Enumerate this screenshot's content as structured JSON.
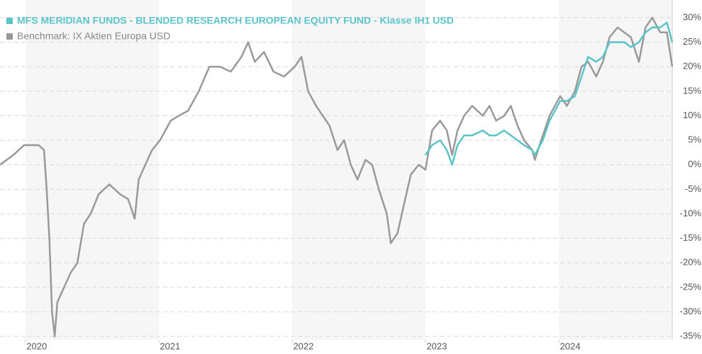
{
  "chart_data": {
    "type": "line",
    "series": [
      {
        "name": "MFS MERIDIAN FUNDS - BLENDED RESEARCH EUROPEAN EQUITY FUND - Klasse IH1 USD",
        "color": "#5bc4c9",
        "values": [
          null,
          null,
          null,
          null,
          null,
          null,
          null,
          null,
          null,
          null,
          null,
          null,
          null,
          null,
          null,
          null,
          null,
          null,
          null,
          null,
          null,
          null,
          null,
          null,
          null,
          null,
          null,
          null,
          null,
          null,
          null,
          null,
          null,
          null,
          null,
          null,
          null,
          null,
          null,
          null,
          null,
          null,
          null,
          null,
          null,
          null,
          null,
          null,
          null,
          null,
          null,
          null,
          null,
          null,
          null,
          null,
          2,
          4,
          5,
          3,
          0,
          4,
          6,
          6,
          7,
          6,
          6,
          7,
          6,
          5,
          4,
          3,
          2,
          5,
          9,
          13,
          13,
          14,
          18,
          22,
          21,
          22,
          25,
          25,
          25,
          24,
          25,
          27,
          28,
          28,
          29,
          25
        ]
      },
      {
        "name": "Benchmark: IX Aktien Europa USD",
        "color": "#999999",
        "values": [
          0,
          2,
          4,
          4,
          3,
          -5,
          -15,
          -30,
          -35,
          -28,
          -25,
          -22,
          -20,
          -12,
          -10,
          -6,
          -4,
          -6,
          -7,
          -11,
          -3,
          0,
          3,
          5,
          9,
          10,
          11,
          15,
          20,
          20,
          19,
          22,
          25,
          21,
          23,
          19,
          18,
          20,
          22,
          15,
          12,
          10,
          8,
          3,
          5,
          0,
          -3,
          1,
          0,
          -5,
          -10,
          -16,
          -14,
          -8,
          -2,
          0,
          -1,
          7,
          9,
          7,
          2,
          7,
          10,
          12,
          10,
          12,
          9,
          10,
          12,
          8,
          5,
          3,
          1,
          6,
          10,
          14,
          12,
          15,
          20,
          21,
          18,
          21,
          26,
          28,
          27,
          26,
          21,
          28,
          30,
          27,
          27,
          20
        ]
      }
    ],
    "x": [
      2019.81,
      2019.91,
      2019.99,
      2020.1,
      2020.14,
      2020.16,
      2020.18,
      2020.2,
      2020.22,
      2020.24,
      2020.29,
      2020.34,
      2020.39,
      2020.44,
      2020.49,
      2020.55,
      2020.63,
      2020.71,
      2020.77,
      2020.82,
      2020.85,
      2020.9,
      2020.95,
      2021.01,
      2021.09,
      2021.15,
      2021.22,
      2021.3,
      2021.38,
      2021.46,
      2021.54,
      2021.62,
      2021.67,
      2021.72,
      2021.79,
      2021.86,
      2021.94,
      2022.02,
      2022.07,
      2022.12,
      2022.18,
      2022.23,
      2022.28,
      2022.34,
      2022.39,
      2022.44,
      2022.49,
      2022.55,
      2022.6,
      2022.65,
      2022.71,
      2022.74,
      2022.79,
      2022.84,
      2022.89,
      2022.95,
      2023.0,
      2023.05,
      2023.11,
      2023.16,
      2023.2,
      2023.24,
      2023.29,
      2023.35,
      2023.43,
      2023.48,
      2023.53,
      2023.59,
      2023.64,
      2023.69,
      2023.74,
      2023.8,
      2023.82,
      2023.88,
      2023.93,
      2024.01,
      2024.06,
      2024.12,
      2024.17,
      2024.22,
      2024.28,
      2024.33,
      2024.38,
      2024.44,
      2024.49,
      2024.54,
      2024.6,
      2024.65,
      2024.7,
      2024.76,
      2024.81,
      2024.85
    ],
    "xlim": [
      2019.81,
      2024.85
    ],
    "xticks": [
      2020,
      2021,
      2022,
      2023,
      2024
    ],
    "ylim": [
      -35.7,
      33.6
    ],
    "yticks": [
      {
        "value": 30,
        "label": "30%"
      },
      {
        "value": 25,
        "label": "25%"
      },
      {
        "value": 20,
        "label": "20%"
      },
      {
        "value": 15,
        "label": "15%"
      },
      {
        "value": 10,
        "label": "10%"
      },
      {
        "value": 5,
        "label": "5%"
      },
      {
        "value": 0,
        "label": "0%"
      },
      {
        "value": -5,
        "label": "-5%"
      },
      {
        "value": -10,
        "label": "-10%"
      },
      {
        "value": -15,
        "label": "-15%"
      },
      {
        "value": -20,
        "label": "-20%"
      },
      {
        "value": -25,
        "label": "-25%"
      },
      {
        "value": -30,
        "label": "-30%"
      },
      {
        "value": -35,
        "label": "-35%"
      }
    ],
    "grid": true,
    "legend": "top-left"
  }
}
